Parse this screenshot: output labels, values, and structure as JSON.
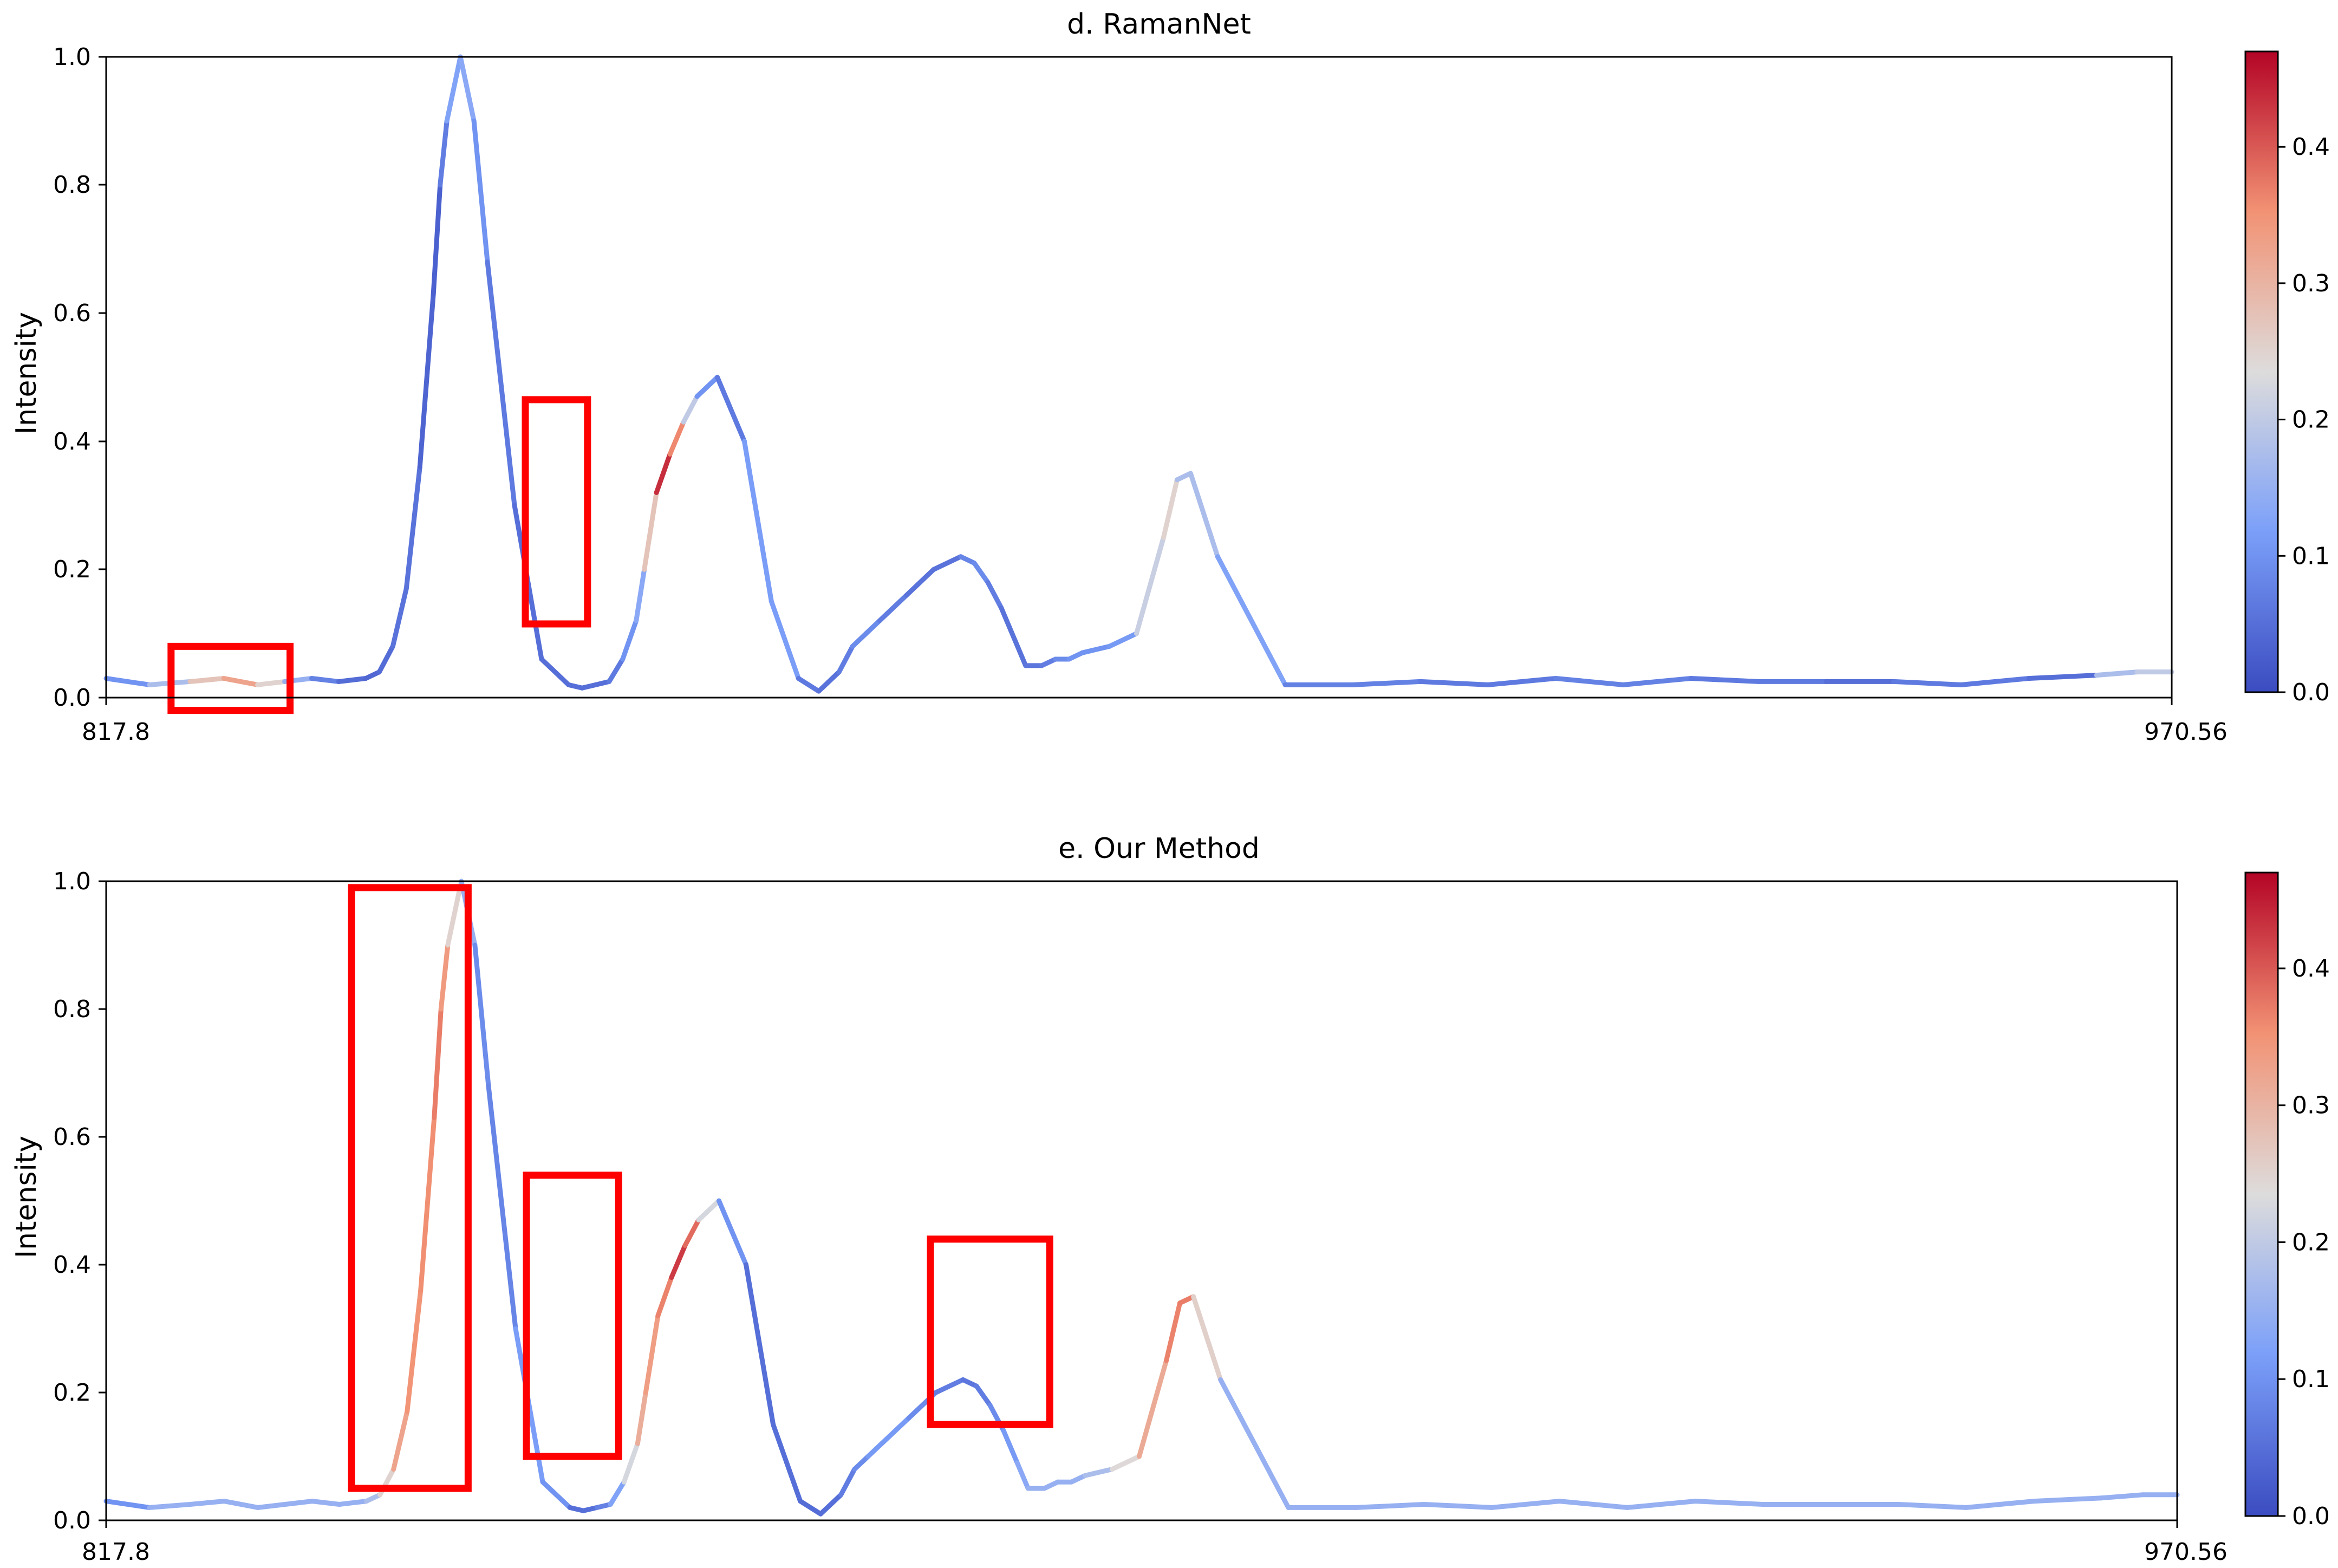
{
  "chart_data": [
    {
      "type": "line",
      "title": "d. RamanNet",
      "ylabel": "Intensity",
      "xlim": [
        817.8,
        970.56
      ],
      "ylim": [
        0,
        1.0
      ],
      "x_tick_labels": [
        "817.8",
        "970.56"
      ],
      "y_tick_labels": [
        "0.0",
        "0.2",
        "0.4",
        "0.6",
        "0.8",
        "1.0"
      ],
      "colorbar": {
        "colormap": "coolwarm",
        "range": [
          0,
          0.47
        ],
        "tick_labels": [
          "0.0",
          "0.1",
          "0.2",
          "0.3",
          "0.4"
        ]
      },
      "series": [
        {
          "x": [
            817.8,
            821,
            824,
            826.5,
            829,
            831,
            833,
            835,
            837,
            838,
            839,
            840,
            841,
            842,
            842.5,
            843,
            844,
            845,
            846,
            848,
            850,
            852,
            853,
            854,
            855,
            856,
            857,
            857.6,
            858.5,
            859.5,
            860.5,
            861.5,
            863,
            865,
            867,
            869,
            870.5,
            872,
            873,
            874,
            875,
            877,
            879,
            881,
            882,
            883,
            884,
            885,
            885.8,
            887,
            888,
            889,
            890,
            892,
            894,
            896,
            897,
            898,
            900,
            905,
            910,
            915,
            920,
            925,
            930,
            935,
            940,
            945,
            950,
            955,
            960,
            965,
            968,
            970.56
          ],
          "y": [
            0.03,
            0.02,
            0.025,
            0.03,
            0.02,
            0.025,
            0.03,
            0.025,
            0.03,
            0.04,
            0.08,
            0.17,
            0.36,
            0.63,
            0.8,
            0.9,
            1.0,
            0.9,
            0.68,
            0.3,
            0.06,
            0.02,
            0.015,
            0.02,
            0.025,
            0.06,
            0.12,
            0.2,
            0.32,
            0.38,
            0.43,
            0.47,
            0.5,
            0.4,
            0.15,
            0.03,
            0.01,
            0.04,
            0.08,
            0.1,
            0.12,
            0.16,
            0.2,
            0.22,
            0.21,
            0.18,
            0.14,
            0.09,
            0.05,
            0.05,
            0.06,
            0.06,
            0.07,
            0.08,
            0.1,
            0.25,
            0.34,
            0.35,
            0.22,
            0.02,
            0.02,
            0.025,
            0.02,
            0.03,
            0.02,
            0.03,
            0.025,
            0.025,
            0.025,
            0.02,
            0.03,
            0.035,
            0.04,
            0.04
          ],
          "attribution": [
            0.05,
            0.15,
            0.2,
            0.35,
            0.3,
            0.2,
            0.1,
            0.05,
            0.04,
            0.04,
            0.05,
            0.06,
            0.05,
            0.02,
            0.04,
            0.1,
            0.15,
            0.12,
            0.08,
            0.05,
            0.05,
            0.05,
            0.05,
            0.05,
            0.05,
            0.08,
            0.12,
            0.15,
            0.4,
            0.47,
            0.25,
            0.15,
            0.05,
            0.08,
            0.15,
            0.08,
            0.05,
            0.06,
            0.08,
            0.1,
            0.08,
            0.06,
            0.05,
            0.06,
            0.1,
            0.08,
            0.06,
            0.05,
            0.06,
            0.06,
            0.08,
            0.1,
            0.1,
            0.1,
            0.12,
            0.3,
            0.2,
            0.15,
            0.2,
            0.05,
            0.1,
            0.05,
            0.08,
            0.05,
            0.1,
            0.05,
            0.08,
            0.05,
            0.05,
            0.08,
            0.05,
            0.05,
            0.3,
            0.1
          ]
        }
      ],
      "highlights": [
        {
          "x": [
            822.6,
            831.4
          ],
          "y": [
            -0.02,
            0.08
          ]
        },
        {
          "x": [
            848.8,
            853.4
          ],
          "y": [
            0.115,
            0.465
          ]
        }
      ]
    },
    {
      "type": "line",
      "title": "e. Our Method",
      "ylabel": "Intensity",
      "xlim": [
        817.8,
        970.56
      ],
      "ylim": [
        0,
        1.0
      ],
      "x_tick_labels": [
        "817.8",
        "970.56"
      ],
      "y_tick_labels": [
        "0.0",
        "0.2",
        "0.4",
        "0.6",
        "0.8",
        "1.0"
      ],
      "colorbar": {
        "colormap": "coolwarm",
        "range": [
          0,
          0.47
        ],
        "tick_labels": [
          "0.0",
          "0.1",
          "0.2",
          "0.3",
          "0.4"
        ]
      },
      "series": [
        {
          "x": [
            817.8,
            821,
            824,
            826.5,
            829,
            831,
            833,
            835,
            837,
            838,
            839,
            840,
            841,
            842,
            842.5,
            843,
            844,
            845,
            846,
            848,
            850,
            852,
            853,
            854,
            855,
            856,
            857,
            857.6,
            858.5,
            859.5,
            860.5,
            861.5,
            863,
            865,
            867,
            869,
            870.5,
            872,
            873,
            874,
            875,
            877,
            879,
            881,
            882,
            883,
            884,
            885,
            885.8,
            887,
            888,
            889,
            890,
            892,
            894,
            896,
            897,
            898,
            900,
            905,
            910,
            915,
            920,
            925,
            930,
            935,
            940,
            945,
            950,
            955,
            960,
            965,
            968,
            970.56
          ],
          "y": [
            0.03,
            0.02,
            0.025,
            0.03,
            0.02,
            0.025,
            0.03,
            0.025,
            0.03,
            0.04,
            0.08,
            0.17,
            0.36,
            0.63,
            0.8,
            0.9,
            1.0,
            0.9,
            0.68,
            0.3,
            0.06,
            0.02,
            0.015,
            0.02,
            0.025,
            0.06,
            0.12,
            0.2,
            0.32,
            0.38,
            0.43,
            0.47,
            0.5,
            0.4,
            0.15,
            0.03,
            0.01,
            0.04,
            0.08,
            0.1,
            0.12,
            0.16,
            0.2,
            0.22,
            0.21,
            0.18,
            0.14,
            0.09,
            0.05,
            0.05,
            0.06,
            0.06,
            0.07,
            0.08,
            0.1,
            0.25,
            0.34,
            0.35,
            0.22,
            0.02,
            0.02,
            0.025,
            0.02,
            0.03,
            0.02,
            0.03,
            0.025,
            0.025,
            0.025,
            0.02,
            0.03,
            0.035,
            0.04,
            0.04
          ],
          "attribution": [
            0.05,
            0.15,
            0.15,
            0.15,
            0.15,
            0.15,
            0.15,
            0.15,
            0.15,
            0.2,
            0.3,
            0.35,
            0.35,
            0.36,
            0.38,
            0.3,
            0.2,
            0.1,
            0.08,
            0.08,
            0.15,
            0.05,
            0.05,
            0.05,
            0.1,
            0.15,
            0.3,
            0.32,
            0.35,
            0.38,
            0.47,
            0.3,
            0.15,
            0.05,
            0.05,
            0.05,
            0.04,
            0.06,
            0.08,
            0.1,
            0.12,
            0.1,
            0.08,
            0.06,
            0.06,
            0.08,
            0.1,
            0.12,
            0.15,
            0.15,
            0.15,
            0.15,
            0.15,
            0.2,
            0.28,
            0.35,
            0.38,
            0.36,
            0.15,
            0.15,
            0.15,
            0.15,
            0.15,
            0.15,
            0.15,
            0.15,
            0.15,
            0.15,
            0.15,
            0.15,
            0.15,
            0.15,
            0.15,
            0.15
          ]
        }
      ],
      "highlights": [
        {
          "x": [
            835.9,
            844.5
          ],
          "y": [
            0.05,
            0.99
          ]
        },
        {
          "x": [
            848.8,
            855.6
          ],
          "y": [
            0.1,
            0.54
          ]
        },
        {
          "x": [
            878.6,
            887.4
          ],
          "y": [
            0.15,
            0.44
          ]
        }
      ]
    }
  ]
}
